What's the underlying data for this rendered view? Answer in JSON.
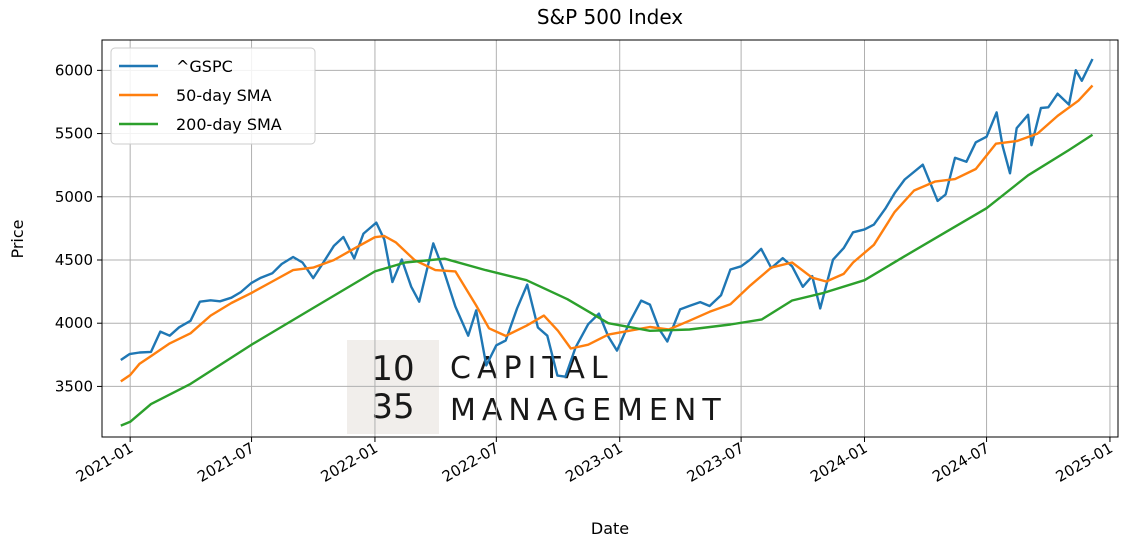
{
  "chart_data": {
    "type": "line",
    "title": "S&P 500 Index",
    "xlabel": "Date",
    "ylabel": "Price",
    "xlim": [
      "2020-11-20",
      "2025-01-13"
    ],
    "ylim": [
      3100,
      6240
    ],
    "grid": true,
    "legend_position": "top-left",
    "x_ticks": [
      "2021-01",
      "2021-07",
      "2022-01",
      "2022-07",
      "2023-01",
      "2023-07",
      "2024-01",
      "2024-07",
      "2025-01"
    ],
    "y_ticks": [
      3500,
      4000,
      4500,
      5000,
      5500,
      6000
    ],
    "series": [
      {
        "name": "^GSPC",
        "color": "#1f77b4",
        "points": [
          [
            "2020-12-18",
            3709
          ],
          [
            "2020-12-31",
            3756
          ],
          [
            "2021-01-15",
            3768
          ],
          [
            "2021-02-01",
            3773
          ],
          [
            "2021-02-15",
            3934
          ],
          [
            "2021-03-01",
            3901
          ],
          [
            "2021-03-15",
            3968
          ],
          [
            "2021-04-01",
            4019
          ],
          [
            "2021-04-15",
            4170
          ],
          [
            "2021-05-01",
            4181
          ],
          [
            "2021-05-15",
            4173
          ],
          [
            "2021-06-01",
            4202
          ],
          [
            "2021-06-15",
            4246
          ],
          [
            "2021-07-01",
            4319
          ],
          [
            "2021-07-15",
            4360
          ],
          [
            "2021-08-01",
            4395
          ],
          [
            "2021-08-15",
            4468
          ],
          [
            "2021-09-01",
            4524
          ],
          [
            "2021-09-15",
            4480
          ],
          [
            "2021-10-01",
            4357
          ],
          [
            "2021-10-15",
            4471
          ],
          [
            "2021-11-01",
            4613
          ],
          [
            "2021-11-15",
            4682
          ],
          [
            "2021-12-01",
            4513
          ],
          [
            "2021-12-15",
            4709
          ],
          [
            "2022-01-03",
            4796
          ],
          [
            "2022-01-15",
            4662
          ],
          [
            "2022-01-27",
            4326
          ],
          [
            "2022-02-10",
            4504
          ],
          [
            "2022-02-24",
            4289
          ],
          [
            "2022-03-08",
            4170
          ],
          [
            "2022-03-29",
            4631
          ],
          [
            "2022-04-15",
            4392
          ],
          [
            "2022-05-01",
            4131
          ],
          [
            "2022-05-20",
            3901
          ],
          [
            "2022-06-01",
            4101
          ],
          [
            "2022-06-16",
            3666
          ],
          [
            "2022-07-01",
            3825
          ],
          [
            "2022-07-15",
            3863
          ],
          [
            "2022-08-01",
            4118
          ],
          [
            "2022-08-16",
            4305
          ],
          [
            "2022-09-01",
            3966
          ],
          [
            "2022-09-15",
            3901
          ],
          [
            "2022-09-30",
            3586
          ],
          [
            "2022-10-12",
            3577
          ],
          [
            "2022-10-27",
            3807
          ],
          [
            "2022-11-15",
            3992
          ],
          [
            "2022-12-01",
            4076
          ],
          [
            "2022-12-15",
            3895
          ],
          [
            "2022-12-28",
            3783
          ],
          [
            "2023-01-15",
            3999
          ],
          [
            "2023-02-02",
            4179
          ],
          [
            "2023-02-15",
            4147
          ],
          [
            "2023-03-01",
            3951
          ],
          [
            "2023-03-13",
            3855
          ],
          [
            "2023-04-01",
            4109
          ],
          [
            "2023-04-15",
            4137
          ],
          [
            "2023-05-01",
            4167
          ],
          [
            "2023-05-15",
            4136
          ],
          [
            "2023-06-01",
            4221
          ],
          [
            "2023-06-15",
            4425
          ],
          [
            "2023-07-01",
            4450
          ],
          [
            "2023-07-15",
            4505
          ],
          [
            "2023-07-31",
            4588
          ],
          [
            "2023-08-15",
            4437
          ],
          [
            "2023-09-01",
            4515
          ],
          [
            "2023-09-15",
            4450
          ],
          [
            "2023-10-01",
            4288
          ],
          [
            "2023-10-15",
            4373
          ],
          [
            "2023-10-27",
            4117
          ],
          [
            "2023-11-15",
            4502
          ],
          [
            "2023-12-01",
            4594
          ],
          [
            "2023-12-15",
            4719
          ],
          [
            "2024-01-01",
            4742
          ],
          [
            "2024-01-15",
            4780
          ],
          [
            "2024-02-01",
            4906
          ],
          [
            "2024-02-15",
            5029
          ],
          [
            "2024-03-01",
            5137
          ],
          [
            "2024-03-28",
            5254
          ],
          [
            "2024-04-19",
            4967
          ],
          [
            "2024-05-01",
            5018
          ],
          [
            "2024-05-15",
            5308
          ],
          [
            "2024-06-01",
            5277
          ],
          [
            "2024-06-15",
            5431
          ],
          [
            "2024-07-01",
            5475
          ],
          [
            "2024-07-16",
            5667
          ],
          [
            "2024-07-25",
            5399
          ],
          [
            "2024-08-05",
            5186
          ],
          [
            "2024-08-15",
            5543
          ],
          [
            "2024-09-01",
            5648
          ],
          [
            "2024-09-06",
            5408
          ],
          [
            "2024-09-20",
            5702
          ],
          [
            "2024-10-01",
            5708
          ],
          [
            "2024-10-15",
            5815
          ],
          [
            "2024-11-01",
            5729
          ],
          [
            "2024-11-11",
            6001
          ],
          [
            "2024-11-20",
            5917
          ],
          [
            "2024-12-06",
            6090
          ]
        ]
      },
      {
        "name": "50-day SMA",
        "color": "#ff7f0e",
        "points": [
          [
            "2020-12-18",
            3540
          ],
          [
            "2021-01-01",
            3590
          ],
          [
            "2021-01-15",
            3680
          ],
          [
            "2021-02-01",
            3740
          ],
          [
            "2021-03-01",
            3840
          ],
          [
            "2021-04-01",
            3920
          ],
          [
            "2021-05-01",
            4060
          ],
          [
            "2021-06-01",
            4160
          ],
          [
            "2021-07-01",
            4240
          ],
          [
            "2021-08-01",
            4330
          ],
          [
            "2021-09-01",
            4420
          ],
          [
            "2021-10-01",
            4440
          ],
          [
            "2021-11-01",
            4500
          ],
          [
            "2021-12-01",
            4590
          ],
          [
            "2022-01-01",
            4680
          ],
          [
            "2022-01-15",
            4690
          ],
          [
            "2022-02-01",
            4640
          ],
          [
            "2022-03-01",
            4500
          ],
          [
            "2022-04-01",
            4420
          ],
          [
            "2022-05-01",
            4410
          ],
          [
            "2022-06-01",
            4140
          ],
          [
            "2022-06-20",
            3960
          ],
          [
            "2022-07-15",
            3900
          ],
          [
            "2022-08-15",
            3980
          ],
          [
            "2022-09-10",
            4060
          ],
          [
            "2022-10-01",
            3940
          ],
          [
            "2022-10-20",
            3800
          ],
          [
            "2022-11-15",
            3830
          ],
          [
            "2022-12-15",
            3910
          ],
          [
            "2023-01-15",
            3940
          ],
          [
            "2023-02-15",
            3970
          ],
          [
            "2023-03-15",
            3950
          ],
          [
            "2023-04-15",
            4020
          ],
          [
            "2023-05-15",
            4090
          ],
          [
            "2023-06-15",
            4150
          ],
          [
            "2023-07-15",
            4300
          ],
          [
            "2023-08-15",
            4440
          ],
          [
            "2023-09-15",
            4480
          ],
          [
            "2023-10-15",
            4360
          ],
          [
            "2023-11-05",
            4330
          ],
          [
            "2023-12-01",
            4390
          ],
          [
            "2023-12-15",
            4480
          ],
          [
            "2024-01-15",
            4620
          ],
          [
            "2024-02-15",
            4880
          ],
          [
            "2024-03-15",
            5050
          ],
          [
            "2024-04-15",
            5120
          ],
          [
            "2024-05-15",
            5140
          ],
          [
            "2024-06-15",
            5220
          ],
          [
            "2024-07-15",
            5420
          ],
          [
            "2024-08-15",
            5440
          ],
          [
            "2024-09-15",
            5500
          ],
          [
            "2024-10-15",
            5640
          ],
          [
            "2024-11-15",
            5760
          ],
          [
            "2024-12-06",
            5880
          ]
        ]
      },
      {
        "name": "200-day SMA",
        "color": "#2ca02c",
        "points": [
          [
            "2020-12-18",
            3190
          ],
          [
            "2021-01-01",
            3220
          ],
          [
            "2021-02-01",
            3360
          ],
          [
            "2021-04-01",
            3520
          ],
          [
            "2021-07-01",
            3830
          ],
          [
            "2021-10-01",
            4120
          ],
          [
            "2022-01-01",
            4410
          ],
          [
            "2022-02-15",
            4480
          ],
          [
            "2022-04-15",
            4510
          ],
          [
            "2022-06-15",
            4420
          ],
          [
            "2022-08-15",
            4340
          ],
          [
            "2022-10-15",
            4190
          ],
          [
            "2022-12-15",
            4000
          ],
          [
            "2023-02-15",
            3940
          ],
          [
            "2023-04-15",
            3950
          ],
          [
            "2023-06-15",
            3990
          ],
          [
            "2023-08-01",
            4030
          ],
          [
            "2023-09-15",
            4180
          ],
          [
            "2023-11-01",
            4240
          ],
          [
            "2024-01-01",
            4340
          ],
          [
            "2024-03-01",
            4530
          ],
          [
            "2024-05-01",
            4720
          ],
          [
            "2024-07-01",
            4910
          ],
          [
            "2024-09-01",
            5170
          ],
          [
            "2024-11-01",
            5370
          ],
          [
            "2024-12-06",
            5490
          ]
        ]
      }
    ]
  },
  "watermark": {
    "badge_top": "10",
    "badge_bottom": "35",
    "line1": "CAPITAL",
    "line2": "MANAGEMENT"
  }
}
